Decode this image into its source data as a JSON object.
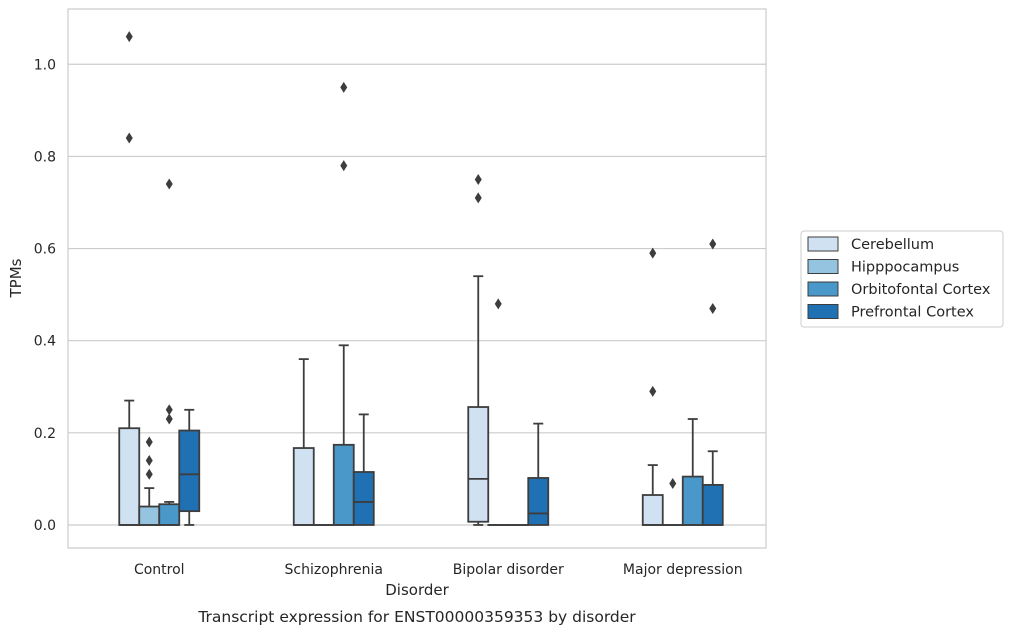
{
  "chart_data": {
    "type": "box",
    "categories": [
      "Control",
      "Schizophrenia",
      "Bipolar disorder",
      "Major depression"
    ],
    "xlabel": "Disorder",
    "ylabel": "TPMs",
    "caption": "Transcript expression for ENST00000359353 by disorder",
    "ylim": [
      -0.05,
      1.12
    ],
    "yticks": [
      "0.0",
      "0.2",
      "0.4",
      "0.6",
      "0.8",
      "1.0"
    ],
    "ytick_values": [
      0.0,
      0.2,
      0.4,
      0.6,
      0.8,
      1.0
    ],
    "grid": "horizontal",
    "legend_position": "right",
    "series": [
      {
        "name": "Cerebellum",
        "color": "#d0e1f2",
        "boxes": [
          {
            "q1": 0.0,
            "median": 0.0,
            "q3": 0.21,
            "whisker_low": 0.0,
            "whisker_high": 0.27,
            "outliers": [
              0.84,
              1.06
            ]
          },
          {
            "q1": 0.0,
            "median": 0.0,
            "q3": 0.167,
            "whisker_low": 0.0,
            "whisker_high": 0.36,
            "outliers": []
          },
          {
            "q1": 0.007,
            "median": 0.1,
            "q3": 0.256,
            "whisker_low": 0.0,
            "whisker_high": 0.54,
            "outliers": [
              0.71,
              0.75
            ]
          },
          {
            "q1": 0.0,
            "median": 0.0,
            "q3": 0.065,
            "whisker_low": 0.0,
            "whisker_high": 0.13,
            "outliers": [
              0.29,
              0.59
            ]
          }
        ]
      },
      {
        "name": "Hipppocampus",
        "color": "#94c4df",
        "boxes": [
          {
            "q1": 0.0,
            "median": 0.0,
            "q3": 0.04,
            "whisker_low": 0.0,
            "whisker_high": 0.08,
            "outliers": [
              0.11,
              0.14,
              0.18
            ]
          },
          {
            "q1": 0.0,
            "median": 0.0,
            "q3": 0.0,
            "whisker_low": 0.0,
            "whisker_high": 0.0,
            "outliers": []
          },
          {
            "q1": 0.0,
            "median": 0.0,
            "q3": 0.0,
            "whisker_low": 0.0,
            "whisker_high": 0.0,
            "outliers": [
              0.48
            ]
          },
          {
            "q1": 0.0,
            "median": 0.0,
            "q3": 0.0,
            "whisker_low": 0.0,
            "whisker_high": 0.0,
            "outliers": [
              0.09
            ]
          }
        ]
      },
      {
        "name": "Orbitofontal Cortex",
        "color": "#4a98c9",
        "boxes": [
          {
            "q1": 0.0,
            "median": 0.0,
            "q3": 0.045,
            "whisker_low": 0.0,
            "whisker_high": 0.05,
            "outliers": [
              0.23,
              0.25,
              0.74
            ]
          },
          {
            "q1": 0.0,
            "median": 0.0,
            "q3": 0.174,
            "whisker_low": 0.0,
            "whisker_high": 0.39,
            "outliers": [
              0.78,
              0.95
            ]
          },
          {
            "q1": 0.0,
            "median": 0.0,
            "q3": 0.0,
            "whisker_low": 0.0,
            "whisker_high": 0.0,
            "outliers": []
          },
          {
            "q1": 0.0,
            "median": 0.0,
            "q3": 0.105,
            "whisker_low": 0.0,
            "whisker_high": 0.23,
            "outliers": []
          }
        ]
      },
      {
        "name": "Prefrontal Cortex",
        "color": "#2070b4",
        "boxes": [
          {
            "q1": 0.03,
            "median": 0.11,
            "q3": 0.205,
            "whisker_low": 0.0,
            "whisker_high": 0.25,
            "outliers": []
          },
          {
            "q1": 0.0,
            "median": 0.05,
            "q3": 0.115,
            "whisker_low": 0.0,
            "whisker_high": 0.24,
            "outliers": []
          },
          {
            "q1": 0.0,
            "median": 0.025,
            "q3": 0.102,
            "whisker_low": 0.0,
            "whisker_high": 0.22,
            "outliers": []
          },
          {
            "q1": 0.0,
            "median": 0.0,
            "q3": 0.087,
            "whisker_low": 0.0,
            "whisker_high": 0.16,
            "outliers": [
              0.47,
              0.61
            ]
          }
        ]
      }
    ]
  }
}
